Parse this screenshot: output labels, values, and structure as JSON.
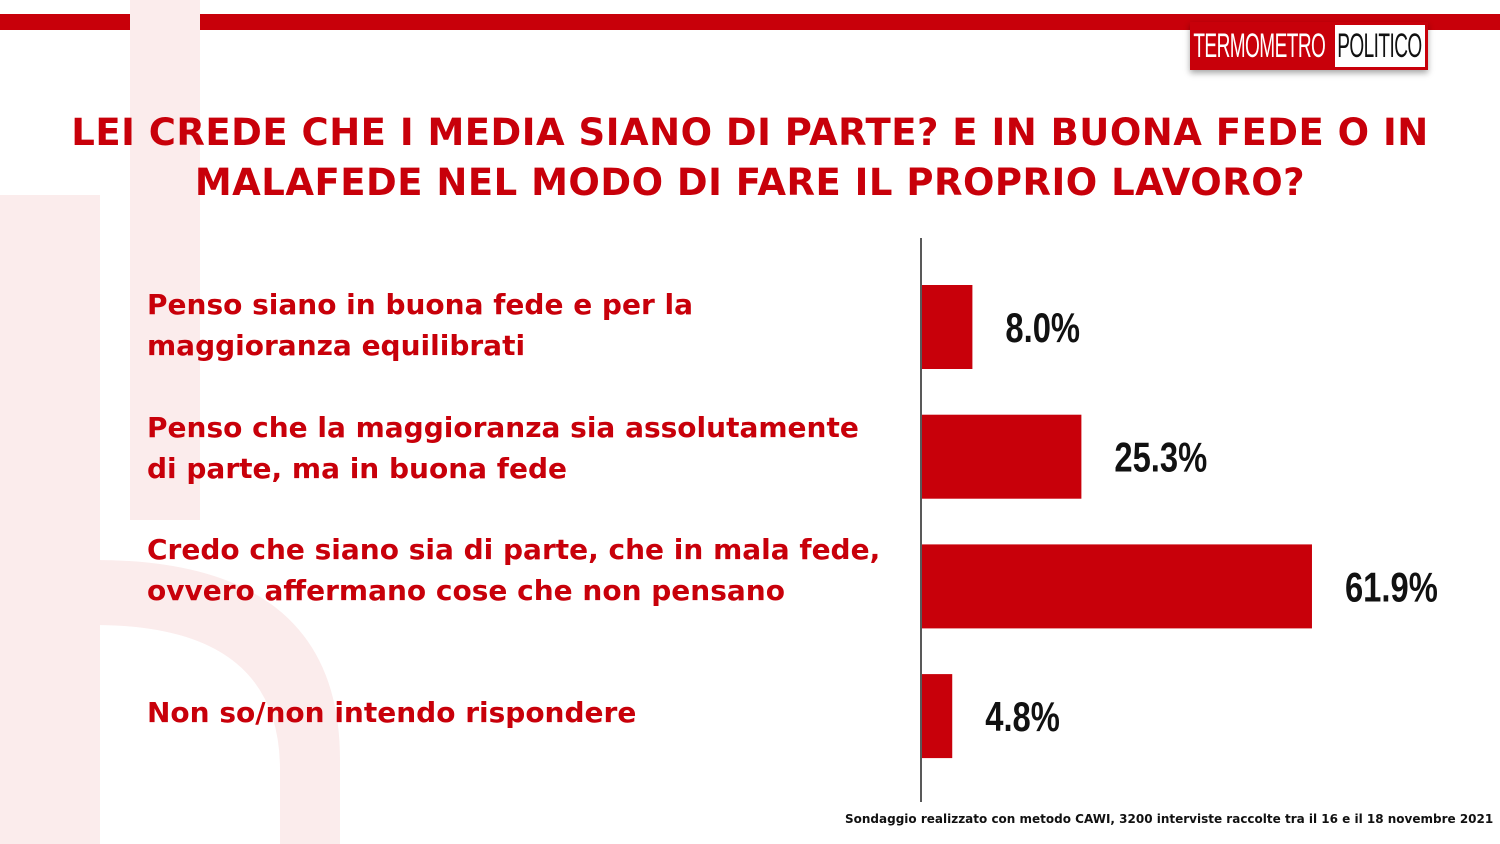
{
  "brand": {
    "logo_part1": "TERMOMETRO",
    "logo_part2": "POLITICO"
  },
  "chart_data": {
    "type": "bar",
    "orientation": "horizontal",
    "title": "LEI CREDE CHE I MEDIA SIANO DI PARTE? E IN BUONA FEDE O IN MALAFEDE NEL MODO DI FARE IL PROPRIO LAVORO?",
    "categories": [
      "Penso siano in buona fede e per la maggioranza equilibrati",
      "Penso che la maggioranza sia assolutamente di parte, ma in buona fede",
      "Credo che siano sia di parte, che in mala fede, ovvero affermano cose che non pensano",
      "Non so/non intendo rispondere"
    ],
    "values": [
      8.0,
      25.3,
      61.9,
      4.8
    ],
    "value_labels": [
      "8.0%",
      "25.3%",
      "61.9%",
      "4.8%"
    ],
    "unit": "%",
    "bar_color": "#c8000a",
    "grid": false,
    "legend": "none"
  },
  "footnote": "Sondaggio realizzato con metodo CAWI, 3200 interviste raccolte tra il 16 e il 18 novembre 2021"
}
